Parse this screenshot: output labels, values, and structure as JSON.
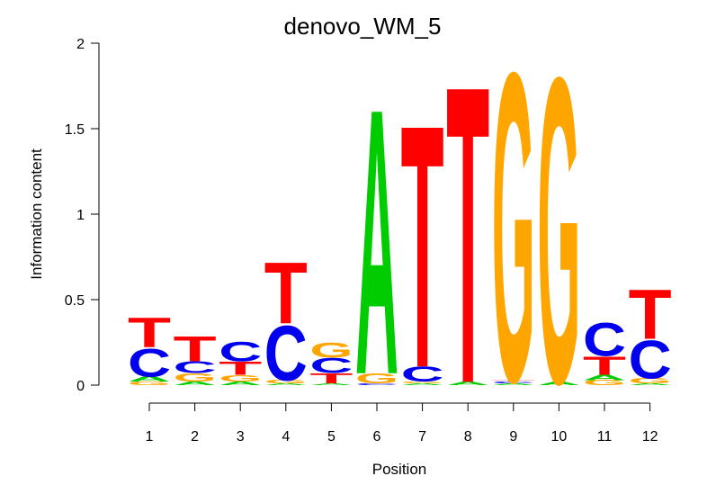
{
  "chart_data": {
    "type": "sequence-logo",
    "title": "denovo_WM_5",
    "xlabel": "Position",
    "ylabel": "Information content",
    "ylim": [
      0,
      2
    ],
    "yticks": [
      {
        "value": 0,
        "label": "0"
      },
      {
        "value": 0.5,
        "label": "0.5"
      },
      {
        "value": 1,
        "label": "1"
      },
      {
        "value": 1.5,
        "label": "1.5"
      },
      {
        "value": 2,
        "label": "2"
      }
    ],
    "positions": [
      "1",
      "2",
      "3",
      "4",
      "5",
      "6",
      "7",
      "8",
      "9",
      "10",
      "11",
      "12"
    ],
    "colors": {
      "A": "#00cc00",
      "C": "#0000ee",
      "G": "#ffa500",
      "T": "#ff0000"
    },
    "columns": [
      [
        {
          "base": "G",
          "height": 0.02
        },
        {
          "base": "A",
          "height": 0.03
        },
        {
          "base": "C",
          "height": 0.17
        },
        {
          "base": "T",
          "height": 0.18
        }
      ],
      [
        {
          "base": "A",
          "height": 0.02
        },
        {
          "base": "G",
          "height": 0.05
        },
        {
          "base": "C",
          "height": 0.07
        },
        {
          "base": "T",
          "height": 0.15
        }
      ],
      [
        {
          "base": "A",
          "height": 0.02
        },
        {
          "base": "G",
          "height": 0.04
        },
        {
          "base": "T",
          "height": 0.08
        },
        {
          "base": "C",
          "height": 0.12
        }
      ],
      [
        {
          "base": "A",
          "height": 0.01
        },
        {
          "base": "G",
          "height": 0.02
        },
        {
          "base": "C",
          "height": 0.33
        },
        {
          "base": "T",
          "height": 0.37
        }
      ],
      [
        {
          "base": "A",
          "height": 0.01
        },
        {
          "base": "T",
          "height": 0.06
        },
        {
          "base": "C",
          "height": 0.09
        },
        {
          "base": "G",
          "height": 0.09
        }
      ],
      [
        {
          "base": "C",
          "height": 0.01
        },
        {
          "base": "G",
          "height": 0.06
        },
        {
          "base": "A",
          "height": 1.6
        }
      ],
      [
        {
          "base": "A",
          "height": 0.01
        },
        {
          "base": "G",
          "height": 0.01
        },
        {
          "base": "C",
          "height": 0.09
        },
        {
          "base": "T",
          "height": 1.46
        }
      ],
      [
        {
          "base": "A",
          "height": 0.02
        },
        {
          "base": "T",
          "height": 1.79
        }
      ],
      [
        {
          "base": "A",
          "height": 0.01
        },
        {
          "base": "C",
          "height": 0.01
        },
        {
          "base": "T",
          "height": 0.01
        },
        {
          "base": "G",
          "height": 1.86
        }
      ],
      [
        {
          "base": "A",
          "height": 0.02
        },
        {
          "base": "G",
          "height": 1.84
        }
      ],
      [
        {
          "base": "G",
          "height": 0.03
        },
        {
          "base": "A",
          "height": 0.03
        },
        {
          "base": "T",
          "height": 0.11
        },
        {
          "base": "C",
          "height": 0.2
        }
      ],
      [
        {
          "base": "A",
          "height": 0.01
        },
        {
          "base": "G",
          "height": 0.03
        },
        {
          "base": "C",
          "height": 0.23
        },
        {
          "base": "T",
          "height": 0.3
        }
      ]
    ]
  }
}
